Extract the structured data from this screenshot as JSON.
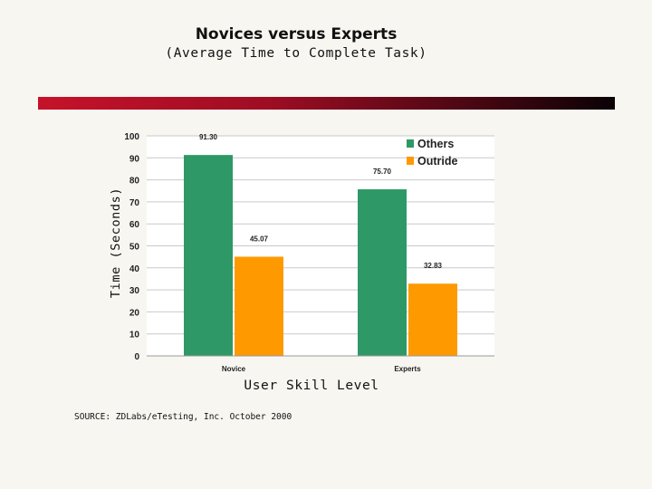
{
  "header": {
    "title": "Novices versus Experts",
    "subtitle": "(Average Time to Complete Task)"
  },
  "footer": {
    "source": "SOURCE: ZDLabs/eTesting, Inc. October 2000"
  },
  "colors": {
    "banner": "#b3132b",
    "series_others": "#2e9966",
    "series_outride": "#ff9900"
  },
  "chart_data": {
    "type": "bar",
    "title": "Novices versus Experts",
    "subtitle": "(Average Time to Complete Task)",
    "xlabel": "User Skill Level",
    "ylabel": "Time (Seconds)",
    "categories": [
      "Novice",
      "Experts"
    ],
    "series": [
      {
        "name": "Others",
        "values": [
          91.3,
          75.7
        ],
        "labels": [
          "91.30",
          "75.70"
        ],
        "color": "#2e9966"
      },
      {
        "name": "Outride",
        "values": [
          45.07,
          32.83
        ],
        "labels": [
          "45.07",
          "32.83"
        ],
        "color": "#ff9900"
      }
    ],
    "ylim": [
      0,
      100
    ],
    "yticks": [
      0,
      10,
      20,
      30,
      40,
      50,
      60,
      70,
      80,
      90,
      100
    ],
    "grid": true,
    "legend": "top-right"
  }
}
